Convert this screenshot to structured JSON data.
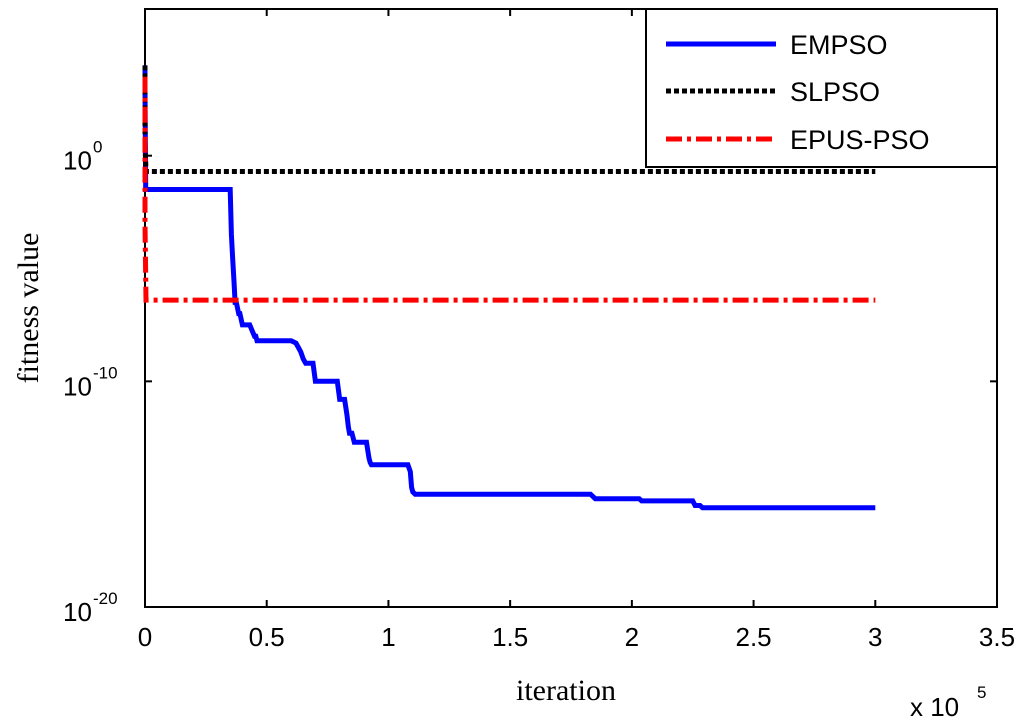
{
  "chart_data": {
    "type": "line",
    "title": "",
    "xlabel": "iteration",
    "ylabel": "fitness value",
    "x_multiplier_label": "x 10",
    "x_multiplier_exponent": "5",
    "xlim": [
      0,
      3.5
    ],
    "ylim_log10": [
      -20,
      6.5
    ],
    "y_scale": "log",
    "grid": false,
    "legend_position": "top-right",
    "x_ticks": [
      {
        "value": 0,
        "label": "0"
      },
      {
        "value": 0.5,
        "label": "0.5"
      },
      {
        "value": 1,
        "label": "1"
      },
      {
        "value": 1.5,
        "label": "1.5"
      },
      {
        "value": 2,
        "label": "2"
      },
      {
        "value": 2.5,
        "label": "2.5"
      },
      {
        "value": 3,
        "label": "3"
      },
      {
        "value": 3.5,
        "label": "3.5"
      }
    ],
    "y_ticks": [
      {
        "exp": 0,
        "base": "10",
        "sup": "0"
      },
      {
        "exp": -10,
        "base": "10",
        "sup": "-10"
      },
      {
        "exp": -20,
        "base": "10",
        "sup": "-20"
      }
    ],
    "series": [
      {
        "name": "EMPSO",
        "color": "#0000ff",
        "style": "solid",
        "x": [
          0,
          0,
          0.003,
          0.35,
          0.355,
          0.36,
          0.365,
          0.37,
          0.375,
          0.385,
          0.39,
          0.4,
          0.43,
          0.45,
          0.455,
          0.46,
          0.6,
          0.62,
          0.63,
          0.64,
          0.65,
          0.66,
          0.69,
          0.7,
          0.71,
          0.79,
          0.8,
          0.82,
          0.83,
          0.835,
          0.84,
          0.85,
          0.86,
          0.91,
          0.92,
          0.925,
          0.93,
          0.94,
          1.08,
          1.09,
          1.095,
          1.1,
          1.11,
          1.12,
          1.83,
          1.85,
          1.86,
          2.03,
          2.04,
          2.25,
          2.26,
          2.28,
          2.29,
          3.0
        ],
        "y_log10": [
          4.0,
          3.0,
          -1.5,
          -1.5,
          -3.5,
          -4.5,
          -5.5,
          -6.5,
          -6.5,
          -7.0,
          -7.0,
          -7.5,
          -7.5,
          -8.0,
          -8.0,
          -8.2,
          -8.2,
          -8.3,
          -8.5,
          -8.7,
          -9.0,
          -9.2,
          -9.2,
          -10.0,
          -10.0,
          -10.0,
          -10.8,
          -10.8,
          -11.5,
          -12.0,
          -12.3,
          -12.3,
          -12.7,
          -12.7,
          -13.4,
          -13.6,
          -13.7,
          -13.7,
          -13.7,
          -14.0,
          -14.7,
          -14.9,
          -15.0,
          -15.0,
          -15.0,
          -15.2,
          -15.2,
          -15.2,
          -15.3,
          -15.3,
          -15.5,
          -15.5,
          -15.6,
          -15.6
        ]
      },
      {
        "name": "SLPSO",
        "color": "#000000",
        "style": "dotted",
        "x": [
          0,
          0,
          0.004,
          3.0
        ],
        "y_log10": [
          4.0,
          0.5,
          -0.7,
          -0.7
        ]
      },
      {
        "name": "EPUS-PSO",
        "color": "#ff0000",
        "style": "dashdot",
        "x": [
          0,
          0,
          0.004,
          3.0
        ],
        "y_log10": [
          3.5,
          -3.0,
          -6.4,
          -6.4
        ]
      }
    ]
  }
}
